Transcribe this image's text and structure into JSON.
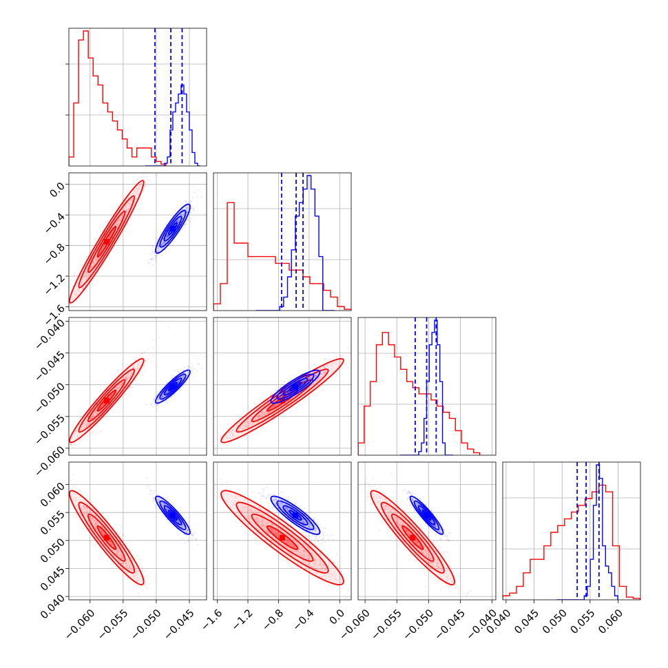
{
  "chart_data": {
    "type": "corner",
    "title": "",
    "n_params": 4,
    "params": [
      {
        "label": "",
        "range": [
          -0.0632,
          -0.0424
        ],
        "ticks": [
          -0.06,
          -0.055,
          -0.05,
          -0.045
        ],
        "tick_labels": [
          "−0.060",
          "−0.055",
          "−0.050",
          "−0.045"
        ]
      },
      {
        "label": "",
        "range": [
          -1.65,
          0.15
        ],
        "ticks": [
          -1.6,
          -1.2,
          -0.8,
          -0.4,
          0.0
        ],
        "tick_labels": [
          "−1.6",
          "−1.2",
          "−0.8",
          "−0.4",
          "0.0"
        ]
      },
      {
        "label": "",
        "range": [
          -0.0611,
          -0.0394
        ],
        "ticks": [
          -0.06,
          -0.055,
          -0.05,
          -0.045,
          -0.04
        ],
        "tick_labels": [
          "−0.060",
          "−0.055",
          "−0.050",
          "−0.045",
          "−0.040"
        ]
      },
      {
        "label": "",
        "range": [
          0.0394,
          0.064
        ],
        "ticks": [
          0.04,
          0.045,
          0.05,
          0.055,
          0.06
        ],
        "tick_labels": [
          "0.040",
          "0.045",
          "0.050",
          "0.055",
          "0.060"
        ]
      }
    ],
    "series": [
      {
        "color": "#ff0000",
        "means": [
          -0.0575,
          -0.75,
          -0.0525,
          0.0505
        ],
        "sigmas": [
          0.0028,
          0.4,
          0.0033,
          0.0042
        ],
        "correlations": [
          [
            1.0,
            0.97,
            0.96,
            -0.94
          ],
          [
            0.97,
            1.0,
            0.96,
            -0.93
          ],
          [
            0.96,
            0.96,
            1.0,
            -0.94
          ],
          [
            -0.94,
            -0.93,
            -0.94,
            1.0
          ]
        ],
        "histograms": [
          [
            1,
            7,
            14,
            15,
            12,
            10,
            9,
            7,
            6,
            5,
            4,
            3,
            2,
            1,
            2,
            2,
            2,
            1,
            0.5,
            0.2
          ],
          [
            0.5,
            2,
            8,
            5,
            5,
            4,
            4,
            4,
            4,
            3.5,
            3.5,
            3,
            3,
            2.5,
            2,
            2,
            1.5,
            1,
            0.3,
            0.1
          ],
          [
            1,
            4,
            6,
            9,
            10,
            9,
            8,
            7,
            6,
            5.5,
            5,
            5,
            4.5,
            4,
            3.5,
            3,
            2,
            1,
            0.5,
            0.2
          ],
          [
            0.3,
            0.5,
            1,
            2,
            3,
            3,
            4,
            5,
            5.5,
            6,
            6.5,
            7,
            7.5,
            8,
            8.5,
            8,
            4,
            1,
            0.2,
            0.1
          ]
        ],
        "show_quantiles": false
      },
      {
        "color": "#0000ff",
        "means": [
          -0.0475,
          -0.58,
          -0.0503,
          0.0545
        ],
        "sigmas": [
          0.0013,
          0.16,
          0.0013,
          0.0017
        ],
        "correlations": [
          [
            1.0,
            0.9,
            0.9,
            -0.9
          ],
          [
            0.9,
            1.0,
            0.88,
            -0.88
          ],
          [
            0.9,
            0.88,
            1.0,
            -0.92
          ],
          [
            -0.9,
            -0.88,
            -0.92,
            1.0
          ]
        ],
        "histograms": [
          [
            0,
            0,
            0,
            0,
            0,
            0,
            0,
            0.3,
            1,
            4,
            6,
            7,
            8,
            9,
            8,
            6,
            4,
            1.5,
            0.3,
            0
          ],
          [
            0,
            0,
            0,
            0,
            0,
            0,
            0.3,
            1,
            2.5,
            4.5,
            7,
            8,
            9,
            10,
            9,
            7,
            4,
            0,
            0,
            0
          ],
          [
            0,
            0,
            0,
            0,
            0,
            0,
            0,
            0.3,
            1,
            3,
            6,
            9,
            10,
            11,
            9,
            6,
            1,
            0,
            0,
            0
          ],
          [
            0,
            0,
            0,
            0,
            0,
            0,
            0,
            0,
            0,
            0.3,
            1,
            3,
            7,
            10,
            9,
            4,
            2.5,
            2,
            1,
            0.3
          ]
        ],
        "quantiles": [
          [
            -0.0502,
            -0.0478,
            -0.0461
          ],
          [
            -0.76,
            -0.57,
            -0.48
          ],
          [
            -0.0521,
            -0.0503,
            -0.0488
          ],
          [
            0.0527,
            0.0543,
            0.0566
          ]
        ],
        "show_quantiles": true
      }
    ],
    "grid": true,
    "legend": "none"
  }
}
